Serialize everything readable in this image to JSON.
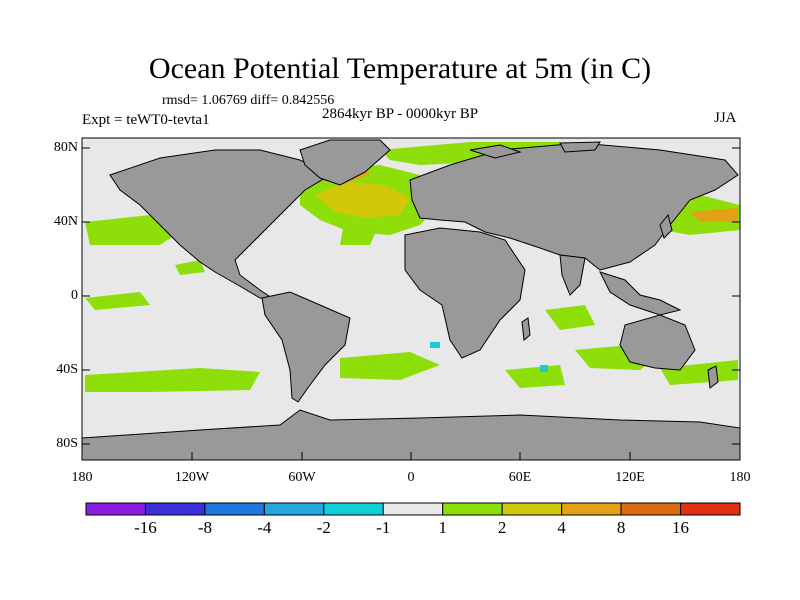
{
  "figure": {
    "title": "Ocean Potential Temperature at 5m (in C)",
    "stats": "rmsd= 1.06769 diff= 0.842556",
    "period": "2864kyr BP - 0000kyr BP",
    "experiment": "Expt = teWT0-tevta1",
    "season": "JJA"
  },
  "chart_data": {
    "type": "map",
    "variable": "Ocean Potential Temperature at 5m (in C)",
    "lat_labels": [
      "80N",
      "40N",
      "0",
      "40S",
      "80S"
    ],
    "lon_labels": [
      "180",
      "120W",
      "60W",
      "0",
      "60E",
      "120E",
      "180"
    ],
    "colorbar": {
      "labels": [
        "-16",
        "-8",
        "-4",
        "-2",
        "-1",
        "1",
        "2",
        "4",
        "8",
        "16"
      ],
      "colors": [
        "#8a1ee0",
        "#3a2fd8",
        "#1f78e0",
        "#22a8dc",
        "#0fd0d6",
        "#e8e8e8",
        "#8ede0a",
        "#d2c80a",
        "#e4a016",
        "#e06a10",
        "#e03010"
      ]
    },
    "land_color": "#999999",
    "ocean_color": "#e8e8e8"
  }
}
